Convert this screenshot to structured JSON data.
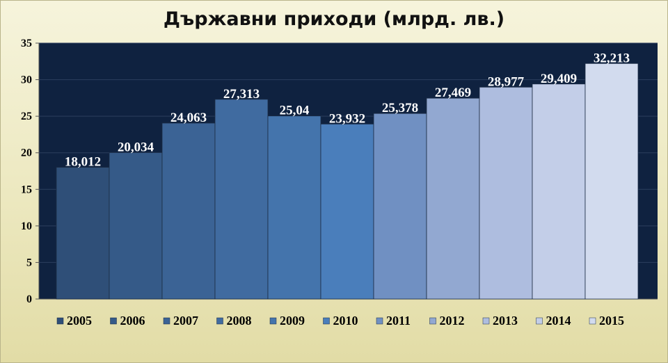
{
  "chart_data": {
    "type": "bar",
    "title": "Държавни приходи (млрд. лв.)",
    "categories": [
      "2005",
      "2006",
      "2007",
      "2008",
      "2009",
      "2010",
      "2011",
      "2012",
      "2013",
      "2014",
      "2015"
    ],
    "values": [
      18.012,
      20.034,
      24.063,
      27.313,
      25.04,
      23.932,
      25.378,
      27.469,
      28.977,
      29.409,
      32.213
    ],
    "value_labels": [
      "18,012",
      "20,034",
      "24,063",
      "27,313",
      "25,04",
      "23,932",
      "25,378",
      "27,469",
      "28,977",
      "29,409",
      "32,213"
    ],
    "colors": [
      "#2f4f78",
      "#355a88",
      "#3b6395",
      "#406ba0",
      "#4474ac",
      "#4a7ebb",
      "#7090c2",
      "#92a8d1",
      "#aebddf",
      "#c3cee8",
      "#d2dbee"
    ],
    "ylim": [
      0,
      35
    ],
    "yticks": [
      0,
      5,
      10,
      15,
      20,
      25,
      30,
      35
    ],
    "grid": true,
    "legend": "bottom",
    "plot_background": "#0f2240"
  }
}
